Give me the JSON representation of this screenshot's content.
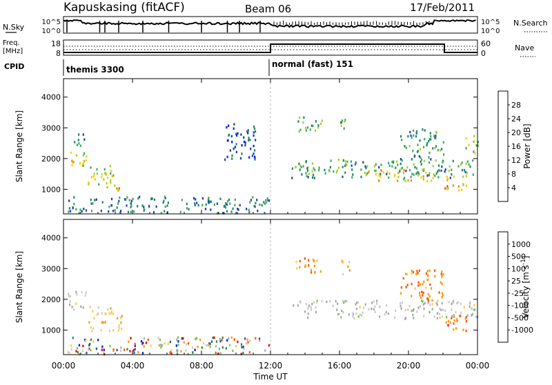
{
  "header": {
    "station": "Kapuskasing (fitACF)",
    "beam": "Beam 06",
    "date": "17/Feb/2011"
  },
  "top_panel": {
    "left_label": "N.Sky",
    "left_ticks": [
      "10^5",
      "10^0"
    ],
    "right_label": "N.Search",
    "right_ticks": [
      "10^5",
      "10^0"
    ]
  },
  "freq_panel": {
    "left_label_1": "Freq.",
    "left_label_2": "[MHz]",
    "left_ticks": [
      "18",
      "8"
    ],
    "right_label": "Nave",
    "right_ticks": [
      "60",
      "0"
    ]
  },
  "cpid": {
    "label": "CPID",
    "segments": [
      {
        "name": "themis 3300",
        "start_hour": 0,
        "end_hour": 12
      },
      {
        "name": "normal (fast) 151",
        "start_hour": 12,
        "end_hour": 24
      }
    ]
  },
  "colors": {
    "power_scale": [
      "#0022ee",
      "#2244aa",
      "#228866",
      "#44aa66",
      "#aacc33",
      "#ffcc00",
      "#ff8800",
      "#ff4400",
      "#dd0000"
    ],
    "velocity_scale": [
      "#ee0000",
      "#ff5500",
      "#ff9900",
      "#ffcc44",
      "#cccccc",
      "#aaaaaa",
      "#66cc44",
      "#338844",
      "#2255aa",
      "#0022cc"
    ]
  },
  "chart_data": [
    {
      "type": "heatmap",
      "title": "Power",
      "xlabel": "Time UT",
      "ylabel": "Slant Range [km]",
      "x_ticks": [
        "00:00",
        "04:00",
        "08:00",
        "12:00",
        "16:00",
        "20:00",
        "00:00"
      ],
      "xlim": [
        0,
        24
      ],
      "y_ticks": [
        "1000",
        "2000",
        "3000",
        "4000"
      ],
      "ylim": [
        200,
        4600
      ],
      "colorbar": {
        "label": "Power [dB]",
        "ticks": [
          "4",
          "8",
          "12",
          "16",
          "20",
          "24",
          "28"
        ],
        "range": [
          0,
          30
        ]
      },
      "bands": [
        {
          "t0": 0.2,
          "t1": 1.3,
          "r0": 1700,
          "r1": 2300,
          "level": 0.55
        },
        {
          "t0": 0.6,
          "t1": 1.2,
          "r0": 2400,
          "r1": 3000,
          "level": 0.3
        },
        {
          "t0": 1.4,
          "t1": 3.0,
          "r0": 1000,
          "r1": 1800,
          "level": 0.5
        },
        {
          "t0": 3.0,
          "t1": 3.4,
          "r0": 1000,
          "r1": 1500,
          "level": 0.7
        },
        {
          "t0": 0.2,
          "t1": 11.9,
          "r0": 250,
          "r1": 800,
          "level": 0.25
        },
        {
          "t0": 9.3,
          "t1": 11.2,
          "r0": 2000,
          "r1": 3200,
          "level": 0.1
        },
        {
          "t0": 13.2,
          "t1": 24.0,
          "r0": 1400,
          "r1": 2000,
          "level": 0.35
        },
        {
          "t0": 17.5,
          "t1": 21.5,
          "r0": 1300,
          "r1": 1700,
          "level": 0.6
        },
        {
          "t0": 13.4,
          "t1": 15.0,
          "r0": 2900,
          "r1": 3400,
          "level": 0.35
        },
        {
          "t0": 16.0,
          "t1": 16.6,
          "r0": 2800,
          "r1": 3300,
          "level": 0.45
        },
        {
          "t0": 19.5,
          "t1": 22.0,
          "r0": 2000,
          "r1": 3000,
          "level": 0.3
        },
        {
          "t0": 22.0,
          "t1": 23.5,
          "r0": 1000,
          "r1": 1500,
          "level": 0.7
        },
        {
          "t0": 23.2,
          "t1": 24.0,
          "r0": 2200,
          "r1": 2800,
          "level": 0.45
        }
      ]
    },
    {
      "type": "heatmap",
      "title": "Velocity",
      "xlabel": "Time UT",
      "ylabel": "Slant Range [km]",
      "x_ticks": [
        "00:00",
        "04:00",
        "08:00",
        "12:00",
        "16:00",
        "20:00",
        "00:00"
      ],
      "xlim": [
        0,
        24
      ],
      "y_ticks": [
        "1000",
        "2000",
        "3000",
        "4000"
      ],
      "ylim": [
        200,
        4600
      ],
      "colorbar": {
        "label": "Velocity [m s^-1]",
        "ticks": [
          "1000",
          "500",
          "100",
          "25",
          "-25",
          "-100",
          "-500",
          "-1000"
        ],
        "range": [
          -1000,
          1000
        ]
      },
      "bands": [
        {
          "t0": 0.2,
          "t1": 1.3,
          "r0": 1700,
          "r1": 2300,
          "level": 0.5
        },
        {
          "t0": 1.4,
          "t1": 3.4,
          "r0": 1000,
          "r1": 1800,
          "level": 0.35
        },
        {
          "t0": 0.2,
          "t1": 11.9,
          "r0": 250,
          "r1": 800,
          "level": 0.0
        },
        {
          "t0": 13.2,
          "t1": 24.0,
          "r0": 1400,
          "r1": 2000,
          "level": 0.5
        },
        {
          "t0": 13.4,
          "t1": 15.0,
          "r0": 2900,
          "r1": 3400,
          "level": 0.2
        },
        {
          "t0": 16.0,
          "t1": 16.6,
          "r0": 2800,
          "r1": 3300,
          "level": 0.3
        },
        {
          "t0": 19.5,
          "t1": 22.0,
          "r0": 2000,
          "r1": 3000,
          "level": 0.2
        },
        {
          "t0": 22.0,
          "t1": 23.5,
          "r0": 1000,
          "r1": 1500,
          "level": 0.15
        }
      ]
    }
  ]
}
